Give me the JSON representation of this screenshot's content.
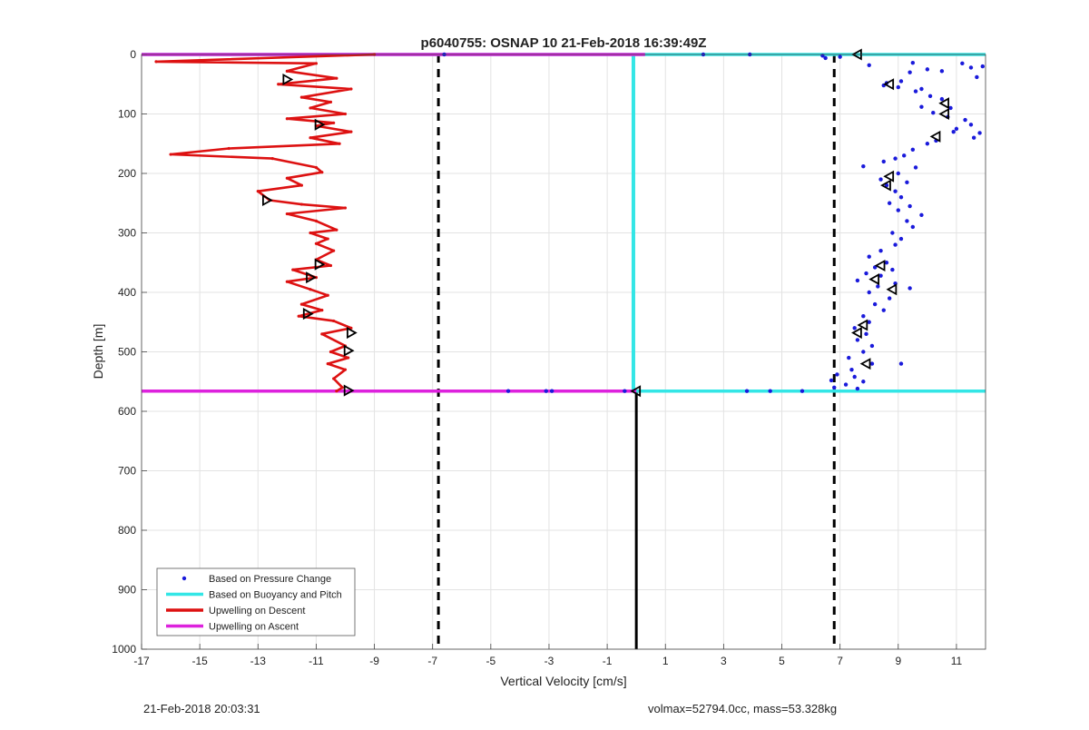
{
  "chart_data": {
    "type": "scatter",
    "title": "p6040755: OSNAP 10 21-Feb-2018 16:39:49Z",
    "xlabel": "Vertical Velocity [cm/s]",
    "ylabel": "Depth [m]",
    "xlim": [
      -17,
      12
    ],
    "ylim": [
      1000,
      0
    ],
    "y_reversed": true,
    "xticks": [
      -17,
      -15,
      -13,
      -11,
      -9,
      -7,
      -5,
      -3,
      -1,
      1,
      3,
      5,
      7,
      9,
      11
    ],
    "yticks": [
      0,
      100,
      200,
      300,
      400,
      500,
      600,
      700,
      800,
      900,
      1000
    ],
    "grid": true,
    "legend_position": "bottom-left",
    "colors": {
      "pressure": "#1a1adb",
      "buoyancy": "#33e6e6",
      "descent": "#dd1111",
      "ascent": "#dd22dd",
      "reference": "#000000"
    },
    "series": [
      {
        "name": "Based on Pressure Change",
        "style": "dots",
        "points": [
          [
            -6.6,
            0
          ],
          [
            2.3,
            0
          ],
          [
            3.9,
            0
          ],
          [
            6.4,
            2
          ],
          [
            6.5,
            6
          ],
          [
            7.0,
            4
          ],
          [
            8.0,
            18
          ],
          [
            9.5,
            14
          ],
          [
            10.0,
            25
          ],
          [
            11.2,
            15
          ],
          [
            11.5,
            22
          ],
          [
            11.9,
            20
          ],
          [
            10.5,
            28
          ],
          [
            9.4,
            30
          ],
          [
            11.7,
            38
          ],
          [
            8.6,
            48
          ],
          [
            9.1,
            45
          ],
          [
            9.0,
            55
          ],
          [
            8.5,
            52
          ],
          [
            9.6,
            62
          ],
          [
            9.8,
            58
          ],
          [
            10.1,
            70
          ],
          [
            10.5,
            75
          ],
          [
            9.8,
            88
          ],
          [
            10.8,
            90
          ],
          [
            10.2,
            98
          ],
          [
            10.7,
            105
          ],
          [
            11.3,
            110
          ],
          [
            11.5,
            118
          ],
          [
            11.0,
            125
          ],
          [
            10.9,
            130
          ],
          [
            11.8,
            132
          ],
          [
            11.6,
            140
          ],
          [
            10.3,
            145
          ],
          [
            10.0,
            150
          ],
          [
            9.5,
            160
          ],
          [
            9.2,
            170
          ],
          [
            8.9,
            175
          ],
          [
            8.5,
            180
          ],
          [
            7.8,
            188
          ],
          [
            9.6,
            190
          ],
          [
            9.0,
            200
          ],
          [
            8.4,
            210
          ],
          [
            9.3,
            215
          ],
          [
            8.6,
            220
          ],
          [
            8.9,
            230
          ],
          [
            9.1,
            240
          ],
          [
            8.7,
            250
          ],
          [
            9.4,
            255
          ],
          [
            9.0,
            262
          ],
          [
            9.8,
            270
          ],
          [
            9.3,
            280
          ],
          [
            9.5,
            290
          ],
          [
            8.8,
            300
          ],
          [
            9.1,
            310
          ],
          [
            8.9,
            320
          ],
          [
            8.4,
            330
          ],
          [
            8.0,
            340
          ],
          [
            8.6,
            350
          ],
          [
            8.2,
            358
          ],
          [
            8.8,
            362
          ],
          [
            7.9,
            368
          ],
          [
            8.4,
            372
          ],
          [
            7.6,
            380
          ],
          [
            8.9,
            385
          ],
          [
            8.3,
            390
          ],
          [
            9.4,
            393
          ],
          [
            8.0,
            400
          ],
          [
            8.7,
            410
          ],
          [
            8.2,
            420
          ],
          [
            8.5,
            430
          ],
          [
            7.8,
            440
          ],
          [
            8.0,
            450
          ],
          [
            7.5,
            460
          ],
          [
            7.9,
            470
          ],
          [
            7.6,
            480
          ],
          [
            8.1,
            490
          ],
          [
            7.8,
            500
          ],
          [
            7.3,
            510
          ],
          [
            8.1,
            520
          ],
          [
            7.4,
            530
          ],
          [
            9.1,
            520
          ],
          [
            6.9,
            538
          ],
          [
            7.5,
            542
          ],
          [
            6.7,
            548
          ],
          [
            7.8,
            550
          ],
          [
            7.2,
            555
          ],
          [
            6.8,
            560
          ],
          [
            7.6,
            562
          ],
          [
            -4.4,
            566
          ],
          [
            -3.1,
            566
          ],
          [
            -2.9,
            566
          ],
          [
            -0.4,
            566
          ],
          [
            3.8,
            566
          ],
          [
            4.6,
            566
          ],
          [
            5.7,
            566
          ]
        ]
      },
      {
        "name": "Based on Buoyancy and Pitch",
        "style": "line",
        "points": [
          [
            -17,
            0
          ],
          [
            12,
            0
          ],
          [
            -0.1,
            0
          ],
          [
            -0.1,
            566
          ],
          [
            -17,
            566
          ],
          [
            12,
            566
          ]
        ]
      },
      {
        "name": "Upwelling on Descent",
        "style": "line",
        "points": [
          [
            -9.0,
            0
          ],
          [
            -16.5,
            12
          ],
          [
            -11.0,
            15
          ],
          [
            -12.0,
            28
          ],
          [
            -10.3,
            40
          ],
          [
            -12.3,
            50
          ],
          [
            -9.8,
            58
          ],
          [
            -11.5,
            72
          ],
          [
            -10.5,
            80
          ],
          [
            -11.2,
            90
          ],
          [
            -10.0,
            100
          ],
          [
            -12.0,
            108
          ],
          [
            -10.4,
            115
          ],
          [
            -11.0,
            120
          ],
          [
            -9.8,
            130
          ],
          [
            -11.2,
            140
          ],
          [
            -10.2,
            150
          ],
          [
            -14.0,
            158
          ],
          [
            -16.0,
            168
          ],
          [
            -12.5,
            175
          ],
          [
            -11.0,
            190
          ],
          [
            -10.8,
            198
          ],
          [
            -12.0,
            208
          ],
          [
            -11.5,
            220
          ],
          [
            -13.0,
            230
          ],
          [
            -12.6,
            245
          ],
          [
            -11.5,
            252
          ],
          [
            -10.0,
            258
          ],
          [
            -12.0,
            268
          ],
          [
            -11.0,
            280
          ],
          [
            -10.3,
            295
          ],
          [
            -11.2,
            300
          ],
          [
            -10.6,
            310
          ],
          [
            -11.0,
            318
          ],
          [
            -10.4,
            330
          ],
          [
            -11.0,
            345
          ],
          [
            -10.5,
            355
          ],
          [
            -11.8,
            362
          ],
          [
            -11.0,
            375
          ],
          [
            -12.0,
            382
          ],
          [
            -11.2,
            395
          ],
          [
            -10.6,
            405
          ],
          [
            -11.5,
            420
          ],
          [
            -10.8,
            430
          ],
          [
            -11.6,
            440
          ],
          [
            -10.4,
            448
          ],
          [
            -9.8,
            460
          ],
          [
            -10.8,
            470
          ],
          [
            -10.0,
            490
          ],
          [
            -10.5,
            500
          ],
          [
            -9.9,
            510
          ],
          [
            -10.6,
            520
          ],
          [
            -10.0,
            530
          ],
          [
            -10.4,
            545
          ],
          [
            -10.1,
            560
          ],
          [
            -10.3,
            566
          ]
        ]
      },
      {
        "name": "Upwelling on Ascent",
        "style": "line",
        "points": [
          [
            -17,
            0
          ],
          [
            0.3,
            0
          ],
          [
            -17,
            566
          ],
          [
            0,
            566
          ]
        ]
      }
    ],
    "markers": {
      "descent": [
        [
          -12.0,
          42
        ],
        [
          -10.9,
          118
        ],
        [
          -12.7,
          245
        ],
        [
          -10.9,
          353
        ],
        [
          -11.2,
          375
        ],
        [
          -11.3,
          436
        ],
        [
          -9.8,
          468
        ],
        [
          -9.9,
          498
        ],
        [
          -9.9,
          565
        ]
      ],
      "ascent": [
        [
          7.6,
          0
        ],
        [
          8.7,
          50
        ],
        [
          10.6,
          82
        ],
        [
          10.6,
          100
        ],
        [
          10.3,
          138
        ],
        [
          8.7,
          205
        ],
        [
          8.6,
          220
        ],
        [
          8.4,
          355
        ],
        [
          8.2,
          378
        ],
        [
          8.8,
          395
        ],
        [
          7.8,
          455
        ],
        [
          7.6,
          468
        ],
        [
          7.9,
          520
        ],
        [
          0,
          566
        ]
      ]
    },
    "reference_lines": [
      {
        "x": -6.8,
        "style": "dashed",
        "from": 0,
        "to": 1000
      },
      {
        "x": 6.8,
        "style": "dashed",
        "from": 0,
        "to": 1000
      },
      {
        "x": 0,
        "style": "solid",
        "from": 566,
        "to": 1000
      }
    ]
  },
  "footer": {
    "left": "21-Feb-2018 20:03:31",
    "right": "volmax=52794.0cc, mass=53.328kg"
  }
}
